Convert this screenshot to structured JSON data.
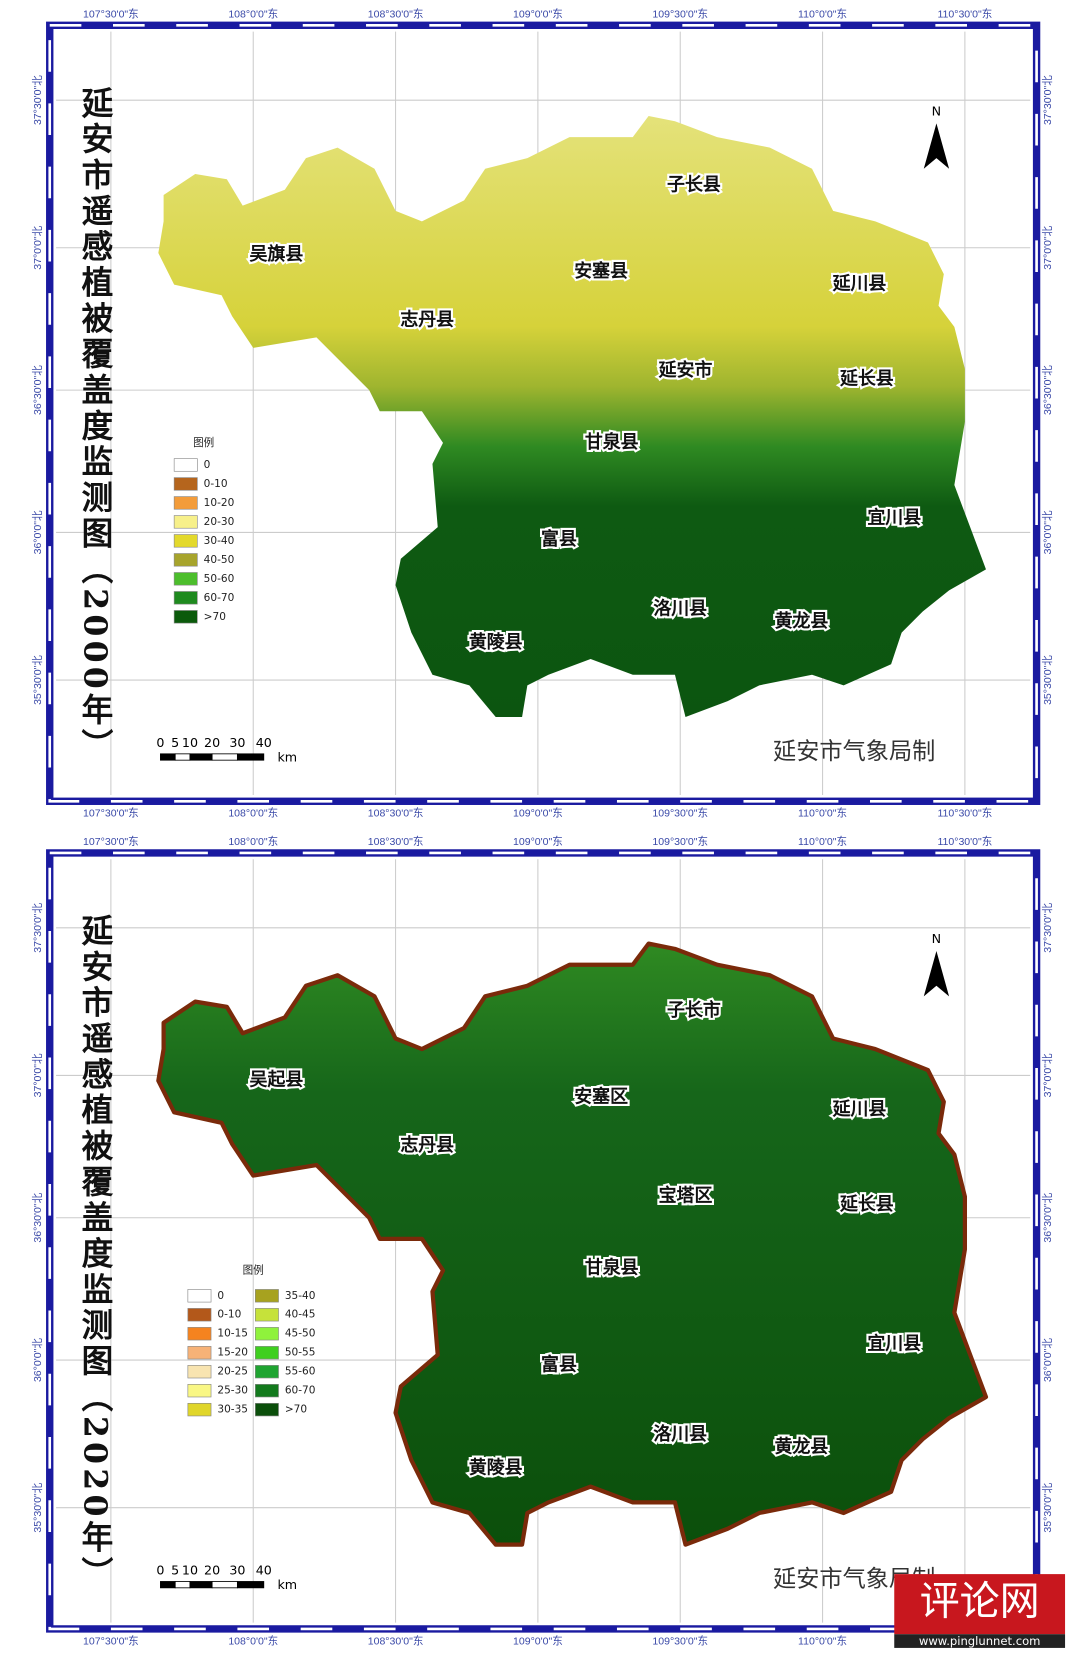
{
  "maps": [
    {
      "title": "延安市遥感植被覆盖度监测图（2000年）",
      "lon_labels": [
        "107°30'0\"东",
        "108°0'0\"东",
        "108°30'0\"东",
        "109°0'0\"东",
        "109°30'0\"东",
        "110°0'0\"东",
        "110°30'0\"东"
      ],
      "lat_labels": [
        "37°30'0\"北",
        "37°0'0\"北",
        "36°30'0\"北",
        "36°0'0\"北",
        "35°30'0\"北"
      ],
      "legend": {
        "title": "图例",
        "items": [
          {
            "label": "0",
            "color": "#ffffff"
          },
          {
            "label": "0-10",
            "color": "#b5651d"
          },
          {
            "label": "10-20",
            "color": "#f39c3a"
          },
          {
            "label": "20-30",
            "color": "#f7f08a"
          },
          {
            "label": "30-40",
            "color": "#e3d92c"
          },
          {
            "label": "40-50",
            "color": "#a7a42c"
          },
          {
            "label": "50-60",
            "color": "#4cbe2c"
          },
          {
            "label": "60-70",
            "color": "#1e8a1e"
          },
          {
            "label": ">70",
            "color": "#0b5a0b"
          }
        ]
      },
      "counties": [
        "吴旗县",
        "子长县",
        "安塞县",
        "延川县",
        "志丹县",
        "延安市",
        "延长县",
        "甘泉县",
        "宜川县",
        "富县",
        "洛川县",
        "黄龙县",
        "黄陵县"
      ],
      "north": "N",
      "scale": {
        "labels": [
          "0",
          "5",
          "10",
          "20",
          "30",
          "40"
        ],
        "unit": "km"
      },
      "credit": "延安市气象局制"
    },
    {
      "title": "延安市遥感植被覆盖度监测图（2020年）",
      "lon_labels": [
        "107°30'0\"东",
        "108°0'0\"东",
        "108°30'0\"东",
        "109°0'0\"东",
        "109°30'0\"东",
        "110°0'0\"东",
        "110°30'0\"东"
      ],
      "lat_labels": [
        "37°30'0\"北",
        "37°0'0\"北",
        "36°30'0\"北",
        "36°0'0\"北",
        "35°30'0\"北"
      ],
      "legend": {
        "title": "图例",
        "items": [
          {
            "label": "0",
            "color": "#ffffff"
          },
          {
            "label": "0-10",
            "color": "#b3581a"
          },
          {
            "label": "10-15",
            "color": "#f5831f"
          },
          {
            "label": "15-20",
            "color": "#f7b277"
          },
          {
            "label": "20-25",
            "color": "#f8e4b0"
          },
          {
            "label": "25-30",
            "color": "#f9f784"
          },
          {
            "label": "30-35",
            "color": "#e0d62a"
          },
          {
            "label": "35-40",
            "color": "#a7a21f"
          },
          {
            "label": "40-45",
            "color": "#c6e23a"
          },
          {
            "label": "45-50",
            "color": "#8ff23c"
          },
          {
            "label": "50-55",
            "color": "#3fcf1f"
          },
          {
            "label": "55-60",
            "color": "#1fa431"
          },
          {
            "label": "60-70",
            "color": "#137a1d"
          },
          {
            "label": ">70",
            "color": "#0b4f0b"
          }
        ]
      },
      "counties": [
        "吴起县",
        "子长市",
        "安塞区",
        "延川县",
        "志丹县",
        "宝塔区",
        "延长县",
        "甘泉县",
        "宜川县",
        "富县",
        "洛川县",
        "黄龙县",
        "黄陵县"
      ],
      "north": "N",
      "scale": {
        "labels": [
          "0",
          "5",
          "10",
          "20",
          "30",
          "40"
        ],
        "unit": "km"
      },
      "credit": "延安市气象局制"
    }
  ],
  "watermark": {
    "title": "评论网",
    "url": "www.pinglunnet.com"
  }
}
